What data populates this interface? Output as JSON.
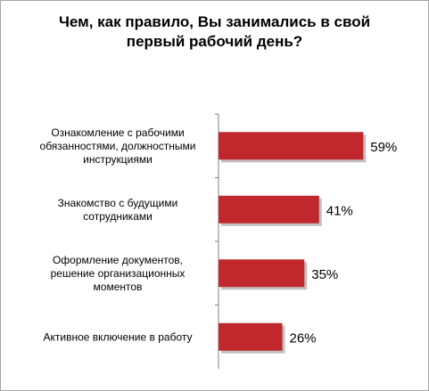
{
  "chart_data": {
    "type": "bar",
    "orientation": "horizontal",
    "title_lines": [
      "Чем, как правило, Вы занимались в свой",
      "первый рабочий день?"
    ],
    "categories": [
      [
        "Ознакомление с рабочими",
        "обязанностями, должностными",
        "инструкциями"
      ],
      [
        "Знакомство с будущими",
        "сотрудниками"
      ],
      [
        "Оформление документов,",
        "решение организационных",
        "моментов"
      ],
      [
        "Активное  включение в работу"
      ]
    ],
    "values": [
      59,
      41,
      35,
      26
    ],
    "value_labels": [
      "59%",
      "41%",
      "35%",
      "26%"
    ],
    "xlim": [
      0,
      100
    ],
    "grid": false,
    "legend": "none",
    "bar_color": "#c0282d",
    "bar_shadow_color": "#8c8c8c",
    "axis_color": "#808080"
  }
}
